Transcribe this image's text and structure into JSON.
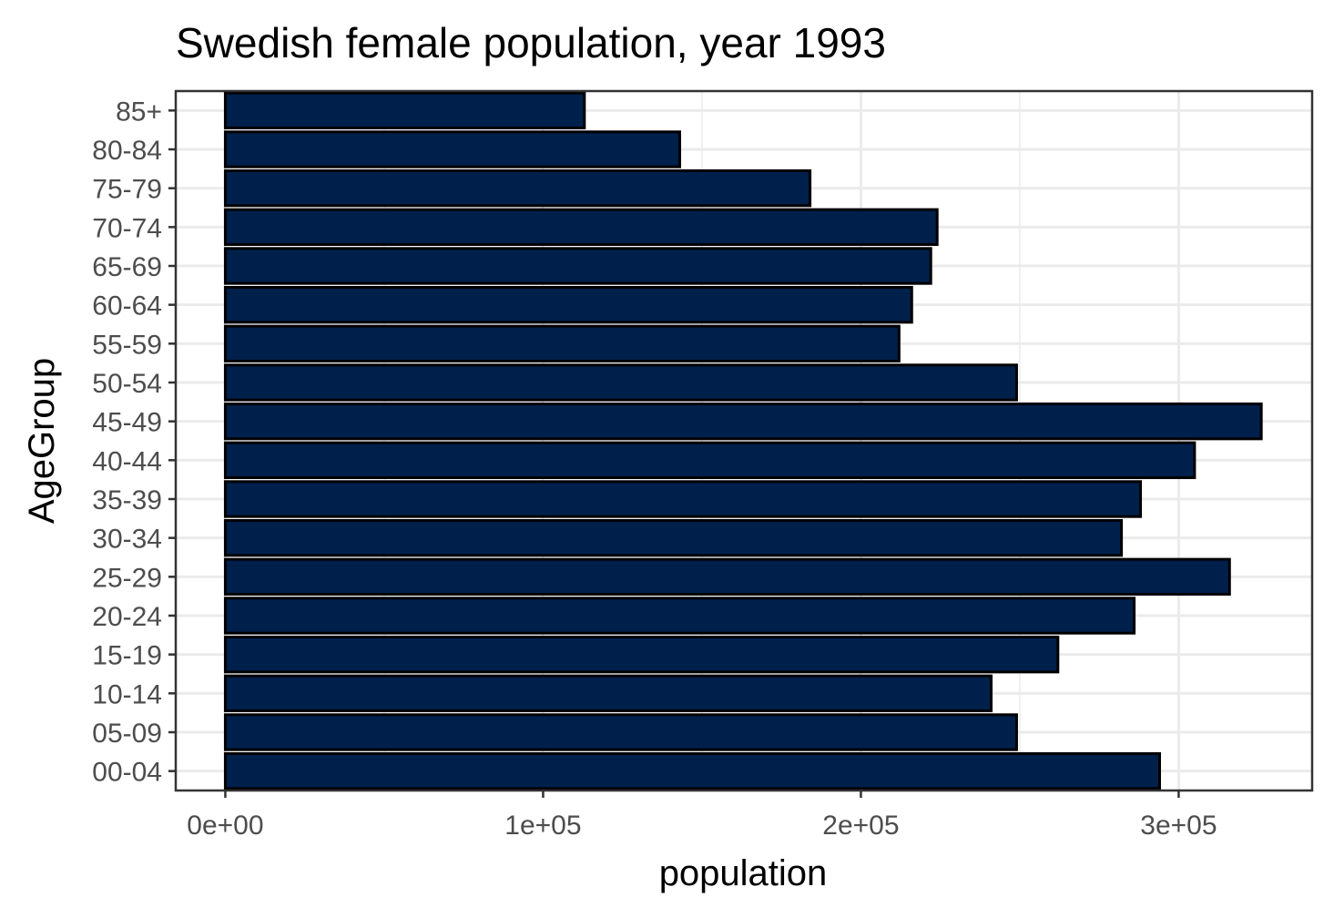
{
  "chart_data": {
    "type": "bar",
    "orientation": "horizontal",
    "title": "Swedish female population, year 1993",
    "xlabel": "population",
    "ylabel": "AgeGroup",
    "categories": [
      "00-04",
      "05-09",
      "10-14",
      "15-19",
      "20-24",
      "25-29",
      "30-34",
      "35-39",
      "40-44",
      "45-49",
      "50-54",
      "55-59",
      "60-64",
      "65-69",
      "70-74",
      "75-79",
      "80-84",
      "85+"
    ],
    "values": [
      294000,
      249000,
      241000,
      262000,
      286000,
      316000,
      282000,
      288000,
      305000,
      326000,
      249000,
      212000,
      216000,
      222000,
      224000,
      184000,
      143000,
      113000
    ],
    "xlim": [
      -15600,
      342000
    ],
    "xticks": [
      0,
      100000,
      200000,
      300000
    ],
    "xtick_labels": [
      "0e+00",
      "1e+05",
      "2e+05",
      "3e+05"
    ],
    "grid": true,
    "bar_fill": "#00204c",
    "bar_outline": "#000000",
    "panel_border": "#333333",
    "grid_color": "#ebebeb"
  }
}
